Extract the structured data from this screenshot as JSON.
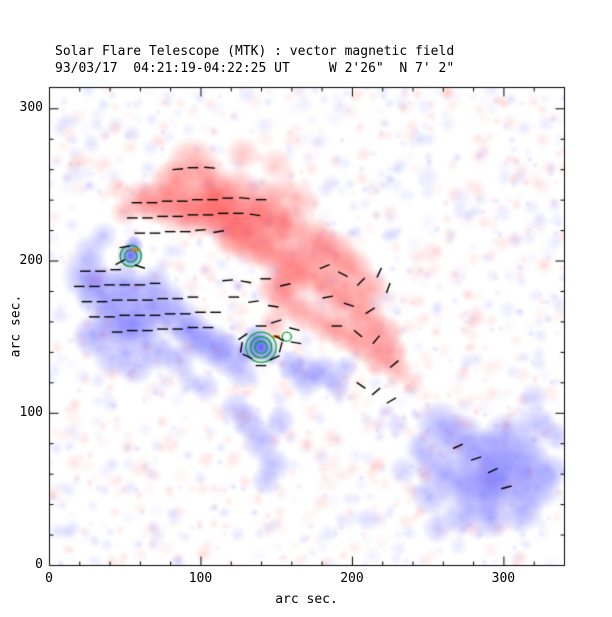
{
  "chart_data": {
    "type": "heatmap",
    "title": "Solar Flare Telescope (MTK) : vector magnetic field",
    "subtitle": "93/03/17  04:21:19-04:22:25 UT     W 2'26\"  N 7' 2\"",
    "xlabel": "arc sec.",
    "ylabel": "arc sec.",
    "xlim": [
      0,
      340
    ],
    "ylim": [
      0,
      314
    ],
    "x_ticks": [
      0,
      100,
      200,
      300
    ],
    "y_ticks": [
      0,
      100,
      200,
      300
    ],
    "minor_tick_interval": 20,
    "legend": "none",
    "grid": false,
    "colors": {
      "positive_polarity": "#ff5555",
      "negative_polarity": "#6666ff",
      "vector": "#000000",
      "contour": "#00aa33",
      "marker": "#e08000",
      "frame": "#000000",
      "background": "#ffffff"
    },
    "vector_length": 7,
    "polarity_blobs": [
      [
        95,
        263,
        11,
        0.45,
        1
      ],
      [
        82,
        252,
        9,
        0.5,
        1
      ],
      [
        105,
        252,
        9,
        0.45,
        1
      ],
      [
        128,
        270,
        7,
        0.3,
        1
      ],
      [
        150,
        263,
        7,
        0.25,
        1
      ],
      [
        60,
        240,
        8,
        0.4,
        1
      ],
      [
        70,
        238,
        9,
        0.5,
        1
      ],
      [
        85,
        236,
        11,
        0.6,
        1
      ],
      [
        100,
        233,
        11,
        0.65,
        1
      ],
      [
        115,
        231,
        11,
        0.7,
        1
      ],
      [
        130,
        228,
        11,
        0.65,
        1
      ],
      [
        145,
        226,
        10,
        0.6,
        1
      ],
      [
        158,
        223,
        9,
        0.55,
        1
      ],
      [
        50,
        232,
        6,
        0.3,
        1
      ],
      [
        140,
        240,
        9,
        0.45,
        1
      ],
      [
        155,
        243,
        8,
        0.35,
        1
      ],
      [
        168,
        238,
        7,
        0.3,
        1
      ],
      [
        122,
        216,
        9,
        0.6,
        1
      ],
      [
        135,
        210,
        9,
        0.6,
        1
      ],
      [
        148,
        205,
        9,
        0.6,
        1
      ],
      [
        162,
        199,
        9,
        0.6,
        1
      ],
      [
        175,
        212,
        10,
        0.55,
        1
      ],
      [
        188,
        204,
        10,
        0.55,
        1
      ],
      [
        200,
        194,
        9,
        0.5,
        1
      ],
      [
        175,
        190,
        9,
        0.55,
        1
      ],
      [
        188,
        180,
        9,
        0.55,
        1
      ],
      [
        200,
        172,
        9,
        0.5,
        1
      ],
      [
        212,
        182,
        8,
        0.45,
        1
      ],
      [
        210,
        162,
        8,
        0.5,
        1
      ],
      [
        220,
        152,
        8,
        0.5,
        1
      ],
      [
        226,
        140,
        7,
        0.45,
        1
      ],
      [
        230,
        128,
        6,
        0.4,
        1
      ],
      [
        218,
        135,
        7,
        0.45,
        1
      ],
      [
        208,
        145,
        8,
        0.5,
        1
      ],
      [
        196,
        152,
        8,
        0.5,
        1
      ],
      [
        184,
        158,
        8,
        0.45,
        1
      ],
      [
        170,
        165,
        8,
        0.45,
        1
      ],
      [
        158,
        172,
        8,
        0.45,
        1
      ],
      [
        150,
        182,
        8,
        0.5,
        1
      ],
      [
        160,
        188,
        8,
        0.5,
        1
      ],
      [
        148,
        158,
        6,
        0.35,
        1
      ],
      [
        240,
        120,
        5,
        0.25,
        1
      ],
      [
        252,
        205,
        5,
        0.15,
        1
      ],
      [
        243,
        192,
        4,
        0.12,
        1
      ],
      [
        45,
        247,
        5,
        0.2,
        1
      ],
      [
        112,
        243,
        9,
        0.5,
        1
      ],
      [
        125,
        248,
        8,
        0.4,
        1
      ],
      [
        25,
        190,
        10,
        0.45,
        -1
      ],
      [
        35,
        178,
        11,
        0.5,
        -1
      ],
      [
        46,
        163,
        11,
        0.55,
        -1
      ],
      [
        30,
        150,
        9,
        0.45,
        -1
      ],
      [
        55,
        152,
        10,
        0.5,
        -1
      ],
      [
        67,
        162,
        9,
        0.45,
        -1
      ],
      [
        77,
        172,
        9,
        0.45,
        -1
      ],
      [
        88,
        160,
        9,
        0.45,
        -1
      ],
      [
        97,
        150,
        9,
        0.5,
        -1
      ],
      [
        108,
        144,
        9,
        0.45,
        -1
      ],
      [
        118,
        138,
        9,
        0.45,
        -1
      ],
      [
        60,
        176,
        9,
        0.45,
        -1
      ],
      [
        50,
        186,
        8,
        0.4,
        -1
      ],
      [
        70,
        186,
        7,
        0.35,
        -1
      ],
      [
        42,
        136,
        8,
        0.35,
        -1
      ],
      [
        57,
        131,
        8,
        0.35,
        -1
      ],
      [
        72,
        140,
        8,
        0.4,
        -1
      ],
      [
        86,
        134,
        7,
        0.35,
        -1
      ],
      [
        27,
        206,
        7,
        0.3,
        -1
      ],
      [
        36,
        216,
        6,
        0.25,
        -1
      ],
      [
        54,
        203,
        5,
        0.85,
        -1
      ],
      [
        56,
        210,
        4,
        0.55,
        -1
      ],
      [
        140,
        143,
        6,
        0.9,
        -1
      ],
      [
        136,
        150,
        5,
        0.5,
        -1
      ],
      [
        131,
        140,
        5,
        0.45,
        -1
      ],
      [
        147,
        137,
        4,
        0.35,
        -1
      ],
      [
        127,
        127,
        7,
        0.35,
        -1
      ],
      [
        103,
        117,
        6,
        0.3,
        -1
      ],
      [
        92,
        122,
        5,
        0.25,
        -1
      ],
      [
        160,
        131,
        6,
        0.4,
        -1
      ],
      [
        170,
        124,
        8,
        0.45,
        -1
      ],
      [
        181,
        127,
        7,
        0.4,
        -1
      ],
      [
        190,
        119,
        6,
        0.35,
        -1
      ],
      [
        131,
        95,
        7,
        0.35,
        -1
      ],
      [
        140,
        82,
        8,
        0.4,
        -1
      ],
      [
        148,
        66,
        7,
        0.35,
        -1
      ],
      [
        122,
        103,
        6,
        0.3,
        -1
      ],
      [
        153,
        95,
        6,
        0.3,
        -1
      ],
      [
        143,
        55,
        6,
        0.3,
        -1
      ],
      [
        258,
        92,
        10,
        0.4,
        -1
      ],
      [
        272,
        82,
        11,
        0.45,
        -1
      ],
      [
        288,
        70,
        12,
        0.55,
        -1
      ],
      [
        300,
        57,
        12,
        0.6,
        -1
      ],
      [
        286,
        46,
        11,
        0.55,
        -1
      ],
      [
        270,
        55,
        10,
        0.5,
        -1
      ],
      [
        255,
        65,
        9,
        0.4,
        -1
      ],
      [
        302,
        84,
        10,
        0.45,
        -1
      ],
      [
        315,
        70,
        10,
        0.5,
        -1
      ],
      [
        322,
        52,
        10,
        0.5,
        -1
      ],
      [
        312,
        36,
        9,
        0.45,
        -1
      ],
      [
        292,
        30,
        8,
        0.4,
        -1
      ],
      [
        272,
        32,
        8,
        0.35,
        -1
      ],
      [
        252,
        45,
        8,
        0.35,
        -1
      ],
      [
        246,
        76,
        7,
        0.3,
        -1
      ],
      [
        322,
        92,
        8,
        0.35,
        -1
      ],
      [
        332,
        62,
        7,
        0.35,
        -1
      ],
      [
        256,
        24,
        6,
        0.25,
        -1
      ],
      [
        234,
        62,
        6,
        0.25,
        -1
      ],
      [
        230,
        92,
        5,
        0.2,
        -1
      ],
      [
        196,
        130,
        5,
        0.3,
        -1
      ],
      [
        210,
        30,
        5,
        0.2,
        -1
      ],
      [
        320,
        110,
        6,
        0.25,
        -1
      ],
      [
        335,
        85,
        6,
        0.3,
        -1
      ],
      [
        250,
        255,
        5,
        0.12,
        -1
      ],
      [
        272,
        241,
        5,
        0.1,
        -1
      ],
      [
        300,
        231,
        4,
        0.1,
        -1
      ],
      [
        18,
        258,
        5,
        0.12,
        -1
      ]
    ],
    "vectors": [
      [
        85,
        260,
        5
      ],
      [
        95,
        261,
        0
      ],
      [
        106,
        261,
        -5
      ],
      [
        58,
        238,
        0
      ],
      [
        68,
        238,
        0
      ],
      [
        78,
        239,
        0
      ],
      [
        88,
        239,
        0
      ],
      [
        98,
        240,
        0
      ],
      [
        108,
        240,
        0
      ],
      [
        118,
        241,
        0
      ],
      [
        129,
        241,
        -5
      ],
      [
        140,
        240,
        0
      ],
      [
        55,
        228,
        0
      ],
      [
        65,
        228,
        0
      ],
      [
        75,
        229,
        0
      ],
      [
        85,
        229,
        0
      ],
      [
        95,
        230,
        0
      ],
      [
        105,
        230,
        0
      ],
      [
        115,
        231,
        0
      ],
      [
        125,
        231,
        0
      ],
      [
        136,
        230,
        -8
      ],
      [
        60,
        218,
        0
      ],
      [
        70,
        218,
        0
      ],
      [
        80,
        219,
        0
      ],
      [
        90,
        219,
        0
      ],
      [
        100,
        220,
        5
      ],
      [
        112,
        219,
        10
      ],
      [
        24,
        193,
        0
      ],
      [
        34,
        193,
        0
      ],
      [
        44,
        194,
        0
      ],
      [
        20,
        183,
        0
      ],
      [
        30,
        183,
        0
      ],
      [
        40,
        184,
        0
      ],
      [
        50,
        184,
        0
      ],
      [
        60,
        184,
        0
      ],
      [
        70,
        185,
        0
      ],
      [
        25,
        173,
        0
      ],
      [
        35,
        173,
        0
      ],
      [
        45,
        174,
        0
      ],
      [
        55,
        174,
        0
      ],
      [
        65,
        174,
        0
      ],
      [
        75,
        175,
        0
      ],
      [
        85,
        175,
        0
      ],
      [
        95,
        176,
        0
      ],
      [
        30,
        163,
        0
      ],
      [
        40,
        163,
        0
      ],
      [
        50,
        164,
        0
      ],
      [
        60,
        164,
        0
      ],
      [
        70,
        164,
        0
      ],
      [
        80,
        165,
        0
      ],
      [
        90,
        165,
        0
      ],
      [
        100,
        166,
        0
      ],
      [
        110,
        166,
        0
      ],
      [
        45,
        153,
        0
      ],
      [
        55,
        154,
        0
      ],
      [
        65,
        154,
        0
      ],
      [
        75,
        155,
        0
      ],
      [
        85,
        155,
        0
      ],
      [
        95,
        156,
        0
      ],
      [
        105,
        156,
        0
      ],
      [
        118,
        187,
        5
      ],
      [
        130,
        186,
        -10
      ],
      [
        143,
        188,
        0
      ],
      [
        156,
        184,
        12
      ],
      [
        122,
        176,
        0
      ],
      [
        135,
        173,
        8
      ],
      [
        148,
        170,
        -8
      ],
      [
        150,
        160,
        18
      ],
      [
        162,
        155,
        -14
      ],
      [
        163,
        146,
        -10
      ],
      [
        128,
        150,
        35
      ],
      [
        152,
        149,
        -30
      ],
      [
        131,
        137,
        -25
      ],
      [
        149,
        136,
        25
      ],
      [
        140,
        131,
        0
      ],
      [
        127,
        143,
        80
      ],
      [
        153,
        143,
        75
      ],
      [
        140,
        157,
        0
      ],
      [
        182,
        196,
        22
      ],
      [
        194,
        191,
        -28
      ],
      [
        206,
        186,
        45
      ],
      [
        218,
        192,
        65
      ],
      [
        184,
        176,
        10
      ],
      [
        198,
        171,
        -18
      ],
      [
        212,
        167,
        32
      ],
      [
        224,
        182,
        70
      ],
      [
        190,
        157,
        0
      ],
      [
        204,
        152,
        -40
      ],
      [
        216,
        148,
        50
      ],
      [
        228,
        132,
        40
      ],
      [
        206,
        118,
        -35
      ],
      [
        216,
        114,
        40
      ],
      [
        226,
        108,
        30
      ],
      [
        270,
        78,
        25
      ],
      [
        282,
        70,
        18
      ],
      [
        293,
        62,
        25
      ],
      [
        302,
        51,
        15
      ],
      [
        47,
        199,
        28
      ],
      [
        60,
        196,
        -18
      ],
      [
        50,
        209,
        8
      ]
    ],
    "contours": [
      {
        "x": 140,
        "y": 143,
        "radii": [
          4,
          7,
          10
        ]
      },
      {
        "x": 54,
        "y": 203,
        "radii": [
          4,
          7
        ]
      },
      {
        "x": 157,
        "y": 150,
        "radii": [
          3
        ]
      }
    ],
    "markers": [
      {
        "x": 57,
        "y": 207,
        "len": 5
      },
      {
        "x": 150,
        "y": 150,
        "len": 5
      }
    ],
    "noise": {
      "seed": 7,
      "count": 1500
    }
  }
}
